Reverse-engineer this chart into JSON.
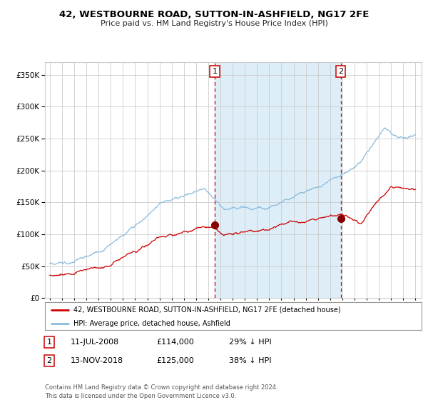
{
  "title": "42, WESTBOURNE ROAD, SUTTON-IN-ASHFIELD, NG17 2FE",
  "subtitle": "Price paid vs. HM Land Registry's House Price Index (HPI)",
  "legend_line1": "42, WESTBOURNE ROAD, SUTTON-IN-ASHFIELD, NG17 2FE (detached house)",
  "legend_line2": "HPI: Average price, detached house, Ashfield",
  "annotation1_label": "1",
  "annotation1_date": "11-JUL-2008",
  "annotation1_price": "£114,000",
  "annotation1_hpi": "29% ↓ HPI",
  "annotation2_label": "2",
  "annotation2_date": "13-NOV-2018",
  "annotation2_price": "£125,000",
  "annotation2_hpi": "38% ↓ HPI",
  "footer": "Contains HM Land Registry data © Crown copyright and database right 2024.\nThis data is licensed under the Open Government Licence v3.0.",
  "hpi_color": "#8BBCDC",
  "price_color": "#CC0000",
  "marker_color": "#880000",
  "dashed_line_color": "#CC0000",
  "shade_color": "#DDEEF8",
  "background_color": "#FFFFFF",
  "grid_color": "#CCCCCC",
  "ylim": [
    0,
    370000
  ],
  "yticks": [
    0,
    50000,
    100000,
    150000,
    200000,
    250000,
    300000,
    350000
  ],
  "sale1_year": 2008.53,
  "sale1_price": 114000,
  "sale2_year": 2018.87,
  "sale2_price": 125000
}
